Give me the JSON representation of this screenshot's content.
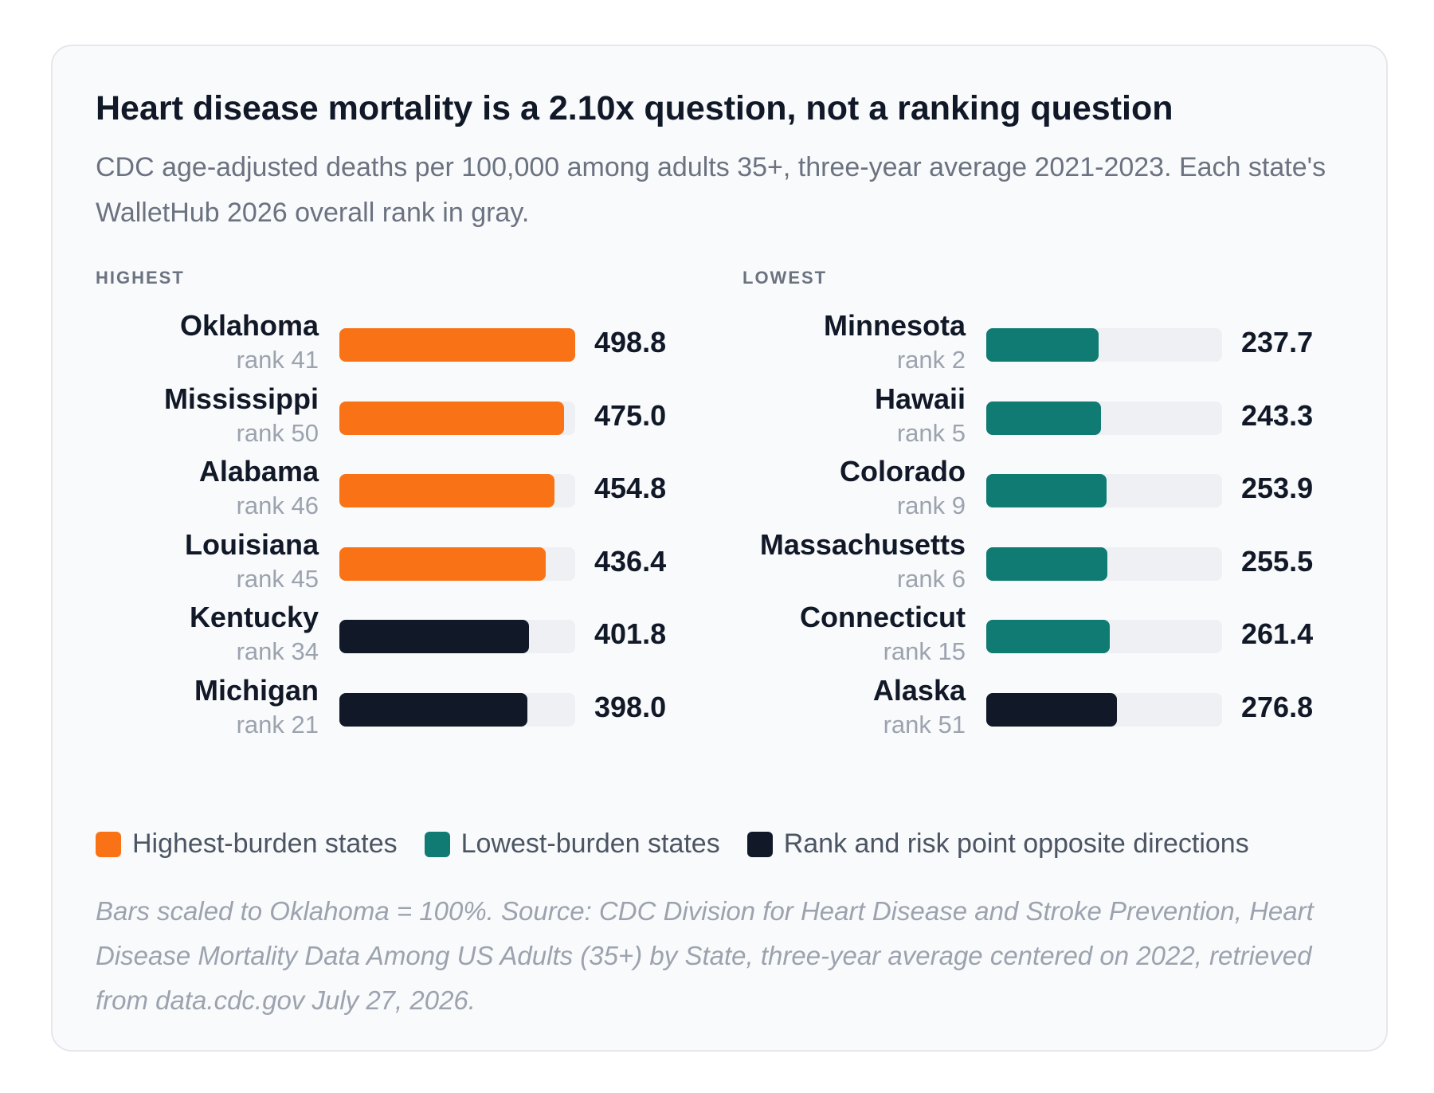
{
  "title": "Heart disease mortality is a 2.10x question, not a ranking question",
  "subtitle": "CDC age-adjusted deaths per 100,000 among adults 35+, three-year average 2021-2023. Each state's WalletHub 2026 overall rank in gray.",
  "colors": {
    "highest": "#f97316",
    "lowest": "#0f7b73",
    "opposite": "#111827",
    "track": "#eef0f3"
  },
  "legend": [
    {
      "label": "Highest-burden states",
      "color": "#f97316"
    },
    {
      "label": "Lowest-burden states",
      "color": "#0f7b73"
    },
    {
      "label": "Rank and risk point opposite directions",
      "color": "#111827"
    }
  ],
  "note": "Bars scaled to Oklahoma = 100%. Source: CDC Division for Heart Disease and Stroke Prevention, Heart Disease Mortality Data Among US Adults (35+) by State, three-year average centered on 2022, retrieved from data.cdc.gov July 27, 2026.",
  "chart_data": [
    {
      "type": "bar",
      "orientation": "horizontal",
      "heading": "HIGHEST",
      "scale_max": 498.8,
      "rows": [
        {
          "state": "Oklahoma",
          "rank": "rank 41",
          "value": 498.8,
          "label": "498.8",
          "group": "highest"
        },
        {
          "state": "Mississippi",
          "rank": "rank 50",
          "value": 475.0,
          "label": "475.0",
          "group": "highest"
        },
        {
          "state": "Alabama",
          "rank": "rank 46",
          "value": 454.8,
          "label": "454.8",
          "group": "highest"
        },
        {
          "state": "Louisiana",
          "rank": "rank 45",
          "value": 436.4,
          "label": "436.4",
          "group": "highest"
        },
        {
          "state": "Kentucky",
          "rank": "rank 34",
          "value": 401.8,
          "label": "401.8",
          "group": "opposite"
        },
        {
          "state": "Michigan",
          "rank": "rank 21",
          "value": 398.0,
          "label": "398.0",
          "group": "opposite"
        }
      ]
    },
    {
      "type": "bar",
      "orientation": "horizontal",
      "heading": "LOWEST",
      "scale_max": 498.8,
      "rows": [
        {
          "state": "Minnesota",
          "rank": "rank 2",
          "value": 237.7,
          "label": "237.7",
          "group": "lowest"
        },
        {
          "state": "Hawaii",
          "rank": "rank 5",
          "value": 243.3,
          "label": "243.3",
          "group": "lowest"
        },
        {
          "state": "Colorado",
          "rank": "rank 9",
          "value": 253.9,
          "label": "253.9",
          "group": "lowest"
        },
        {
          "state": "Massachusetts",
          "rank": "rank 6",
          "value": 255.5,
          "label": "255.5",
          "group": "lowest"
        },
        {
          "state": "Connecticut",
          "rank": "rank 15",
          "value": 261.4,
          "label": "261.4",
          "group": "lowest"
        },
        {
          "state": "Alaska",
          "rank": "rank 51",
          "value": 276.8,
          "label": "276.8",
          "group": "opposite"
        }
      ]
    }
  ]
}
